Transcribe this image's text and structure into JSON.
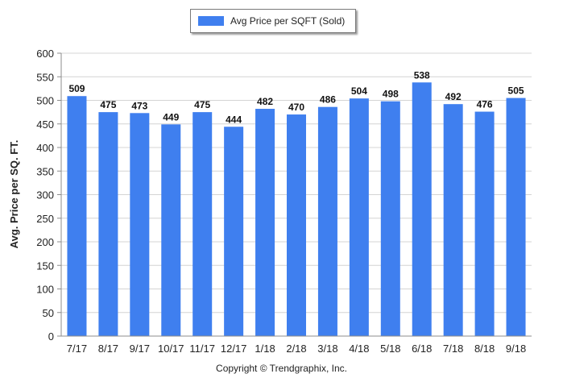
{
  "legend": {
    "label": "Avg Price per SQFT (Sold)"
  },
  "copyright": "Copyright © Trendgraphix, Inc.",
  "colors": {
    "bar": "#3f7fef",
    "grid": "#d4d4d4",
    "axis": "#8c8c8c"
  },
  "chart_data": {
    "type": "bar",
    "categories": [
      "7/17",
      "8/17",
      "9/17",
      "10/17",
      "11/17",
      "12/17",
      "1/18",
      "2/18",
      "3/18",
      "4/18",
      "5/18",
      "6/18",
      "7/18",
      "8/18",
      "9/18"
    ],
    "series": [
      {
        "name": "Avg Price per SQFT (Sold)",
        "values": [
          509,
          475,
          473,
          449,
          475,
          444,
          482,
          470,
          486,
          504,
          498,
          538,
          492,
          476,
          505
        ]
      }
    ],
    "ylabel": "Avg. Price per SQ. FT.",
    "xlabel": "",
    "ylim": [
      0,
      600
    ],
    "yticks": [
      0,
      50,
      100,
      150,
      200,
      250,
      300,
      350,
      400,
      450,
      500,
      550,
      600
    ],
    "grid": true,
    "legend_position": "top-center",
    "data_labels": true
  }
}
